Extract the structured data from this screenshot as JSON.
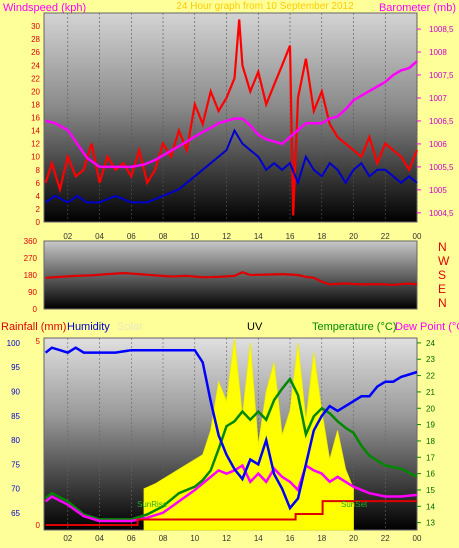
{
  "header": {
    "windspeed_label": "Windspeed (kph)",
    "title_ghost": "24 Hour graph from 10 September 2012",
    "barometer_label": "Barometer (mb)"
  },
  "direction_letters": [
    "N",
    "W",
    "S",
    "E",
    "N"
  ],
  "bottom_header": {
    "rainfall_label": "Rainfall (mm)",
    "humidity_label": "Humidity",
    "solar_label": "Solar",
    "uv_label": "UV",
    "temperature_label": "Temperature (°C)",
    "dewpoint_label": "Dew Point (°C"
  },
  "annotations": {
    "sunrise": "SunRise",
    "sunset": "SunSet"
  },
  "colors": {
    "background": "#ffff99",
    "wind_speed": "#ff0000",
    "wind_avg": "#0000cc",
    "barometer": "#ff00ff",
    "direction": "#dd0000",
    "humidity": "#0000ff",
    "solar": "#ffff00",
    "temperature": "#008800",
    "dewpoint": "#ff00ff",
    "rainfall": "#dd0000"
  },
  "chart_data": [
    {
      "type": "line",
      "name": "wind-barometer",
      "x_ticks": [
        "02",
        "04",
        "06",
        "08",
        "10",
        "12",
        "14",
        "16",
        "18",
        "20",
        "22",
        "00"
      ],
      "x_range_hours": [
        0.5,
        24
      ],
      "y_left_ticks": [
        "0",
        "2",
        "4",
        "6",
        "8",
        "10",
        "12",
        "14",
        "16",
        "18",
        "20",
        "22",
        "24",
        "26",
        "28",
        "30"
      ],
      "y_left_range": [
        0,
        32
      ],
      "y_right_ticks": [
        "1004,5",
        "1005",
        "1005,5",
        "1006",
        "1006,5",
        "1007",
        "1007,5",
        "1008",
        "1008,5"
      ],
      "y_right_range": [
        1004.3,
        1008.85
      ],
      "series": [
        {
          "name": "Barometer",
          "x": [
            0.6,
            1.2,
            2.0,
            2.6,
            3.2,
            4.0,
            5.0,
            6.0,
            6.8,
            7.5,
            8.5,
            9.5,
            10.2,
            11.0,
            11.5,
            12.0,
            12.5,
            13.0,
            13.5,
            14.0,
            14.5,
            15.0,
            15.5,
            16.0,
            16.5,
            17.0,
            17.5,
            18.0,
            18.5,
            19.0,
            19.5,
            20.0,
            20.5,
            21.0,
            21.5,
            22.0,
            22.5,
            23.0,
            23.5,
            24.0
          ],
          "y": [
            1006.5,
            1006.45,
            1006.3,
            1006.0,
            1005.7,
            1005.5,
            1005.5,
            1005.5,
            1005.55,
            1005.65,
            1005.85,
            1006.05,
            1006.2,
            1006.35,
            1006.45,
            1006.5,
            1006.55,
            1006.55,
            1006.4,
            1006.2,
            1006.1,
            1006.05,
            1006.0,
            1006.15,
            1006.3,
            1006.45,
            1006.45,
            1006.45,
            1006.55,
            1006.6,
            1006.75,
            1006.95,
            1007.05,
            1007.15,
            1007.25,
            1007.35,
            1007.5,
            1007.6,
            1007.65,
            1007.8
          ]
        },
        {
          "name": "Average windspeed",
          "x": [
            0.6,
            1.2,
            2.0,
            2.6,
            3.2,
            4.0,
            5.0,
            6.0,
            7.0,
            8.0,
            9.0,
            10.0,
            11.0,
            12.0,
            12.5,
            13.0,
            13.5,
            14.0,
            14.5,
            15.0,
            15.5,
            16.0,
            16.5,
            17.0,
            17.5,
            18.0,
            18.5,
            19.0,
            19.5,
            20.0,
            20.5,
            21.0,
            21.5,
            22.0,
            22.5,
            23.0,
            23.5,
            24.0
          ],
          "y": [
            3,
            4,
            3,
            4,
            3,
            3,
            4,
            3,
            3,
            4,
            5,
            7,
            9,
            11,
            14,
            12,
            11,
            10,
            8,
            9,
            8,
            9,
            6,
            10,
            8,
            7,
            9,
            8,
            6,
            8,
            9,
            7,
            8,
            8,
            7,
            6,
            7,
            6
          ]
        },
        {
          "name": "Windspeed",
          "x": [
            0.6,
            1.0,
            1.5,
            2.0,
            2.5,
            3.0,
            3.5,
            4.0,
            4.5,
            5.0,
            5.5,
            6.0,
            6.5,
            7.0,
            7.5,
            8.0,
            8.5,
            9.0,
            9.5,
            10.0,
            10.5,
            11.0,
            11.5,
            12.0,
            12.5,
            12.8,
            13.0,
            13.5,
            14.0,
            14.5,
            15.0,
            15.5,
            16.0,
            16.2,
            16.5,
            17.0,
            17.5,
            18.0,
            18.5,
            19.0,
            19.5,
            20.0,
            20.5,
            21.0,
            21.5,
            22.0,
            22.5,
            23.0,
            23.5,
            24.0
          ],
          "y": [
            6,
            9,
            5,
            10,
            7,
            8,
            12,
            6,
            10,
            8,
            9,
            7,
            11,
            6,
            8,
            12,
            10,
            14,
            11,
            18,
            15,
            20,
            17,
            19,
            22,
            31,
            24,
            20,
            23,
            18,
            21,
            24,
            27,
            1,
            19,
            25,
            17,
            20,
            15,
            13,
            12,
            11,
            10,
            13,
            9,
            12,
            11,
            10,
            8,
            11
          ]
        }
      ]
    },
    {
      "type": "line",
      "name": "wind-direction",
      "y_ticks": [
        "360",
        "270",
        "180",
        "90",
        "0"
      ],
      "y_range": [
        0,
        360
      ],
      "series": [
        {
          "name": "Wind direction",
          "x": [
            0.6,
            1.5,
            2.5,
            3.5,
            4.5,
            5.5,
            6.5,
            7.5,
            8.5,
            9.5,
            10.5,
            11.5,
            12.5,
            13.0,
            13.5,
            14.5,
            15.5,
            16.5,
            17.0,
            17.5,
            18.0,
            18.5,
            19.5,
            20.5,
            21.5,
            22.5,
            23.5,
            24.0
          ],
          "y": [
            165,
            170,
            175,
            178,
            185,
            190,
            185,
            178,
            172,
            175,
            168,
            170,
            175,
            195,
            180,
            182,
            185,
            180,
            170,
            165,
            145,
            130,
            135,
            130,
            132,
            128,
            135,
            130
          ]
        }
      ]
    },
    {
      "type": "line",
      "name": "humidity-temperature-solar",
      "x_ticks": [
        "02",
        "04",
        "06",
        "08",
        "10",
        "12",
        "14",
        "16",
        "18",
        "20",
        "22",
        "00"
      ],
      "y_left_ticks": [
        "65",
        "70",
        "75",
        "80",
        "85",
        "90",
        "95",
        "100"
      ],
      "y_left_range": [
        61.5,
        101
      ],
      "y_rain_ticks": [
        "0",
        "5"
      ],
      "y_rain_range": [
        0,
        5
      ],
      "y_right_ticks": [
        "13",
        "14",
        "15",
        "16",
        "17",
        "18",
        "19",
        "20",
        "21",
        "22",
        "23",
        "24"
      ],
      "y_right_range": [
        12.55,
        24.3
      ],
      "series": [
        {
          "name": "Humidity",
          "x": [
            0.6,
            1.0,
            2.0,
            2.5,
            3.0,
            3.5,
            4.0,
            5.0,
            6.0,
            7.0,
            8.0,
            9.0,
            10.0,
            10.5,
            11.0,
            11.5,
            12.0,
            12.5,
            13.0,
            13.5,
            14.0,
            14.5,
            15.0,
            15.5,
            16.0,
            16.5,
            17.0,
            17.5,
            18.0,
            18.5,
            19.0,
            19.5,
            20.0,
            20.5,
            21.0,
            21.5,
            22.0,
            22.5,
            23.0,
            23.5,
            24.0
          ],
          "y": [
            98,
            99,
            98,
            99,
            98,
            98,
            98,
            98,
            98.5,
            98.5,
            98.5,
            98.5,
            98.5,
            96,
            88,
            81,
            77,
            74,
            72,
            76,
            75,
            80,
            73,
            70,
            66,
            68,
            75,
            82,
            85,
            87,
            86,
            87,
            88,
            89,
            89,
            91,
            92,
            92,
            93,
            93.5,
            94
          ]
        },
        {
          "name": "Solar",
          "x": [
            6.8,
            7.5,
            8.5,
            9.5,
            10.5,
            11.0,
            11.5,
            12.0,
            12.5,
            13.0,
            13.5,
            14.0,
            14.5,
            15.0,
            15.5,
            16.0,
            16.5,
            17.0,
            17.5,
            18.0,
            18.5,
            19.0,
            19.5,
            20.0
          ],
          "y": [
            70,
            71,
            73,
            75,
            77,
            82,
            92,
            88,
            101,
            85,
            100,
            79,
            90,
            96,
            81,
            86,
            100,
            84,
            98,
            86,
            76,
            82,
            74,
            70
          ]
        },
        {
          "name": "Temperature",
          "x": [
            0.6,
            1.0,
            2.0,
            3.0,
            4.0,
            5.0,
            6.0,
            7.0,
            8.0,
            9.0,
            10.0,
            10.5,
            11.0,
            11.5,
            12.0,
            12.5,
            13.0,
            13.5,
            14.0,
            14.5,
            15.0,
            15.5,
            16.0,
            16.5,
            17.0,
            17.5,
            18.0,
            18.5,
            19.0,
            19.5,
            20.0,
            20.5,
            21.0,
            22.0,
            23.0,
            24.0
          ],
          "y": [
            14.5,
            14.8,
            14.3,
            13.5,
            13.2,
            13.2,
            13.2,
            13.5,
            14.0,
            14.8,
            15.2,
            15.6,
            16.2,
            17.5,
            18.9,
            19.2,
            19.8,
            19.3,
            19.8,
            19.3,
            20.5,
            21.2,
            21.8,
            20.8,
            18.4,
            19.5,
            20.0,
            19.7,
            19.2,
            18.8,
            18.5,
            17.7,
            17.1,
            16.5,
            16.3,
            15.8
          ]
        },
        {
          "name": "Dew Point",
          "x": [
            0.6,
            1.0,
            2.0,
            3.0,
            4.0,
            5.0,
            6.0,
            7.0,
            8.0,
            9.0,
            10.0,
            10.5,
            11.0,
            11.5,
            12.0,
            12.5,
            13.0,
            13.5,
            14.0,
            14.5,
            15.0,
            15.5,
            16.0,
            16.5,
            17.0,
            17.5,
            18.0,
            18.5,
            19.0,
            20.0,
            21.0,
            22.0,
            23.0,
            24.0
          ],
          "y": [
            14.3,
            14.6,
            14.1,
            13.4,
            13.1,
            13.1,
            13.1,
            13.3,
            13.6,
            14.3,
            15.0,
            15.4,
            15.8,
            16.2,
            16.0,
            16.2,
            16.5,
            15.5,
            16.0,
            15.5,
            16.3,
            15.8,
            15.5,
            15.0,
            16.5,
            16.2,
            16.0,
            15.5,
            15.8,
            15.2,
            14.8,
            14.6,
            14.6,
            14.7
          ]
        },
        {
          "name": "Rainfall",
          "x": [
            0.6,
            5.0,
            6.3,
            6.4,
            16.3,
            16.35,
            18.0,
            18.05,
            24.0
          ],
          "y": [
            0,
            0,
            0,
            0.15,
            0.15,
            0.3,
            0.3,
            0.65,
            0.65
          ]
        }
      ]
    }
  ]
}
